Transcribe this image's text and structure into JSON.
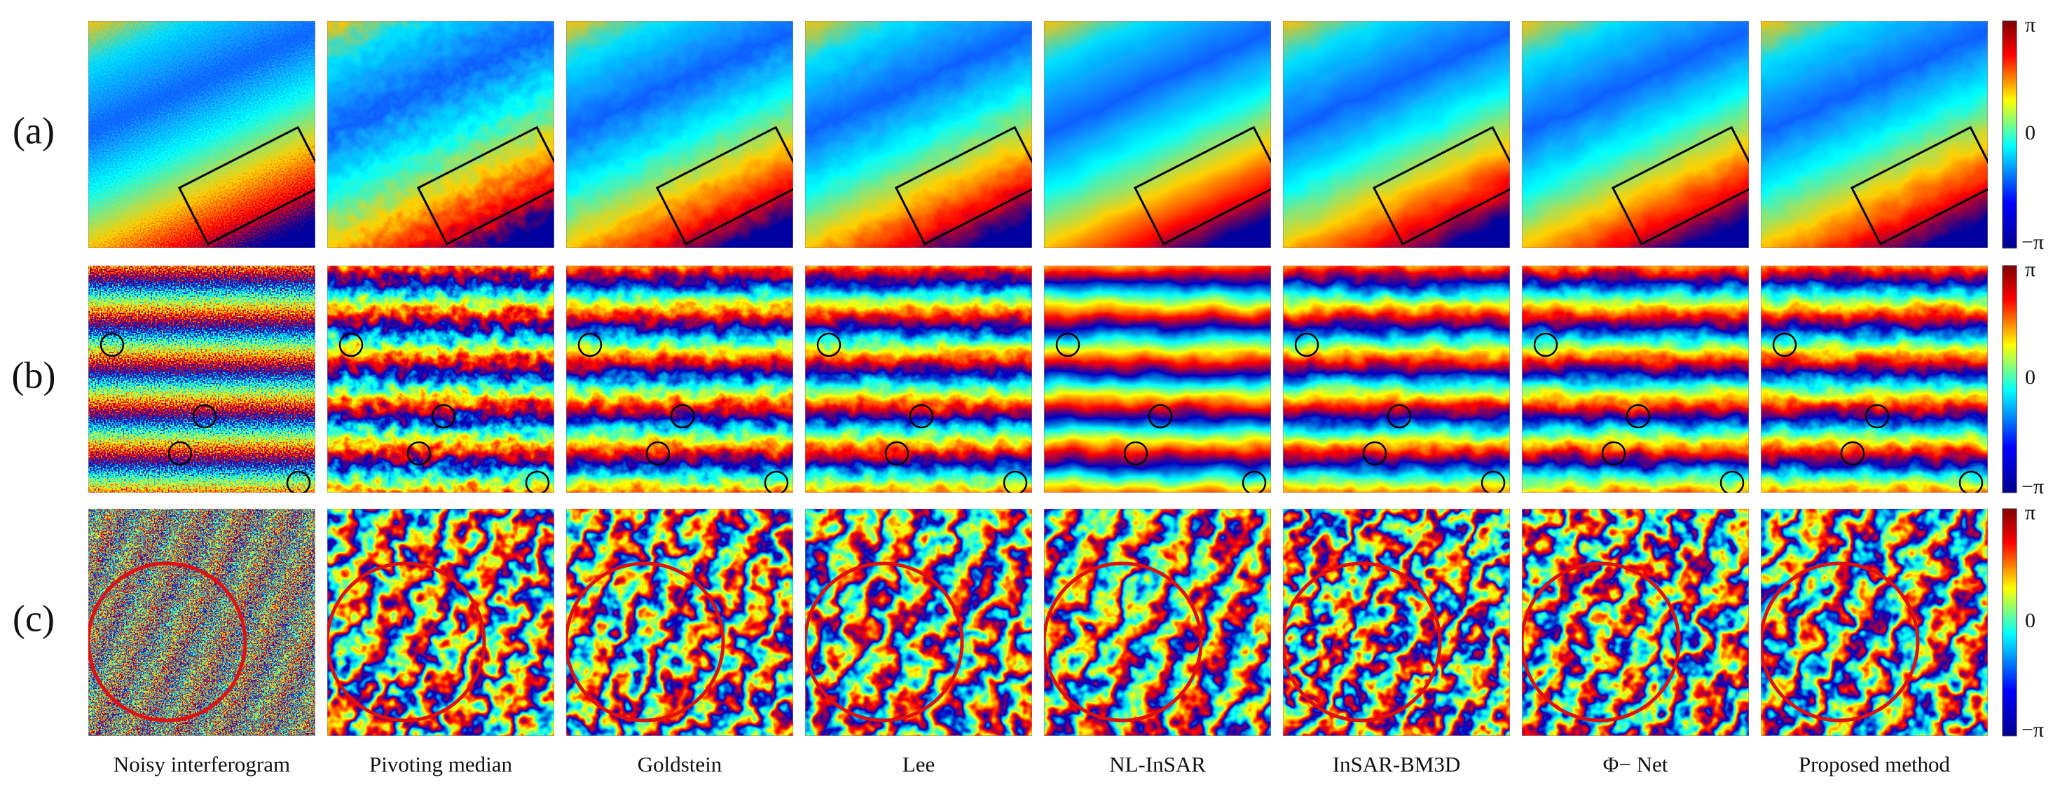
{
  "rows": [
    {
      "label": "(a)"
    },
    {
      "label": "(b)"
    },
    {
      "label": "(c)"
    }
  ],
  "columns": [
    {
      "label": "Noisy interferogram"
    },
    {
      "label": "Pivoting median"
    },
    {
      "label": "Goldstein"
    },
    {
      "label": "Lee"
    },
    {
      "label": "NL-InSAR"
    },
    {
      "label": "InSAR-BM3D"
    },
    {
      "label": "Φ− Net"
    },
    {
      "label": "Proposed method"
    }
  ],
  "colorbars": [
    {
      "top": "π",
      "middle": "0",
      "bottom": "−π"
    },
    {
      "top": "π",
      "middle": "0",
      "bottom": "−π"
    },
    {
      "top": "π",
      "middle": "0",
      "bottom": "−π"
    }
  ]
}
